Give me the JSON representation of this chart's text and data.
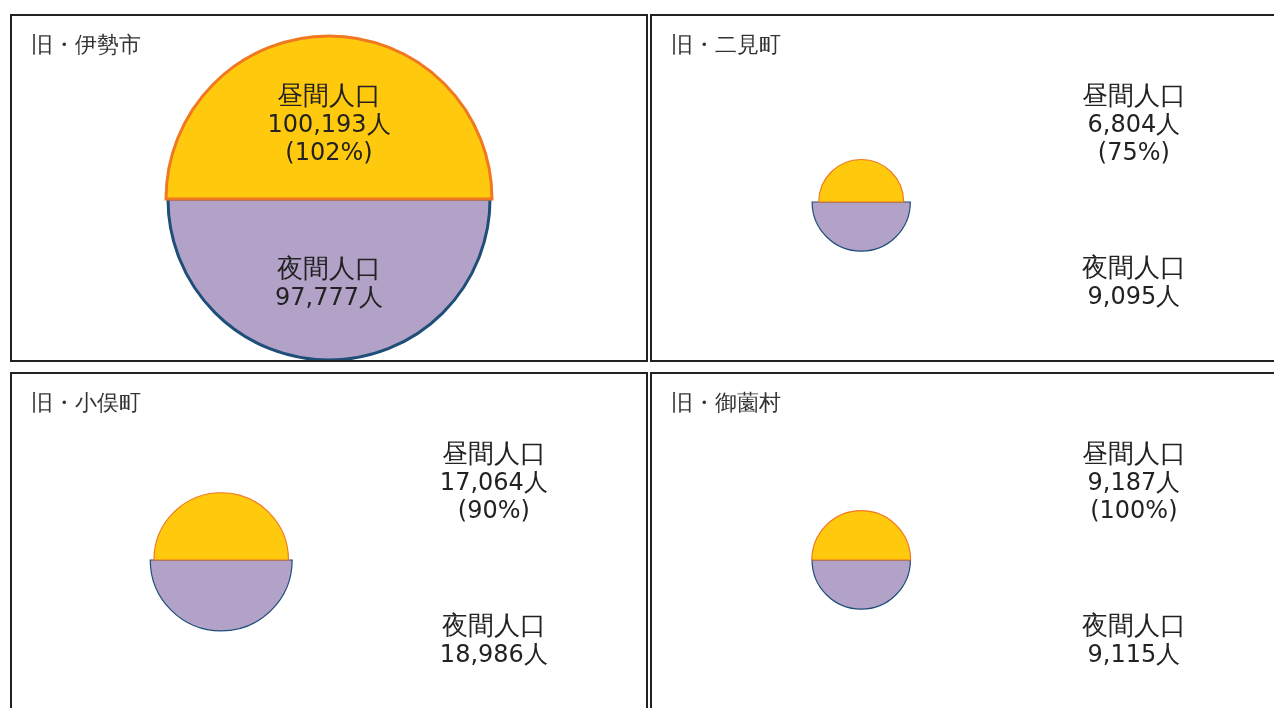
{
  "chart_data": [
    {
      "type": "other",
      "title": "旧・伊勢市",
      "categories": [
        "昼間人口",
        "夜間人口"
      ],
      "values": [
        100193,
        97777
      ],
      "value_labels": [
        "100,193人",
        "97,777人"
      ],
      "annotations": [
        "(102%)"
      ],
      "colors": [
        "#ffc90e",
        "#b3a2c8"
      ]
    },
    {
      "type": "other",
      "title": "旧・二見町",
      "categories": [
        "昼間人口",
        "夜間人口"
      ],
      "values": [
        6804,
        9095
      ],
      "value_labels": [
        "6,804人",
        "9,095人"
      ],
      "annotations": [
        "(75%)"
      ],
      "colors": [
        "#ffc90e",
        "#b3a2c8"
      ]
    },
    {
      "type": "other",
      "title": "旧・小俣町",
      "categories": [
        "昼間人口",
        "夜間人口"
      ],
      "values": [
        17064,
        18986
      ],
      "value_labels": [
        "17,064人",
        "18,986人"
      ],
      "annotations": [
        "(90%)"
      ],
      "colors": [
        "#ffc90e",
        "#b3a2c8"
      ]
    },
    {
      "type": "other",
      "title": "旧・御薗村",
      "categories": [
        "昼間人口",
        "夜間人口"
      ],
      "values": [
        9187,
        9115
      ],
      "value_labels": [
        "9,187人",
        "9,115人"
      ],
      "annotations": [
        "(100%)"
      ],
      "colors": [
        "#ffc90e",
        "#b3a2c8"
      ]
    }
  ]
}
